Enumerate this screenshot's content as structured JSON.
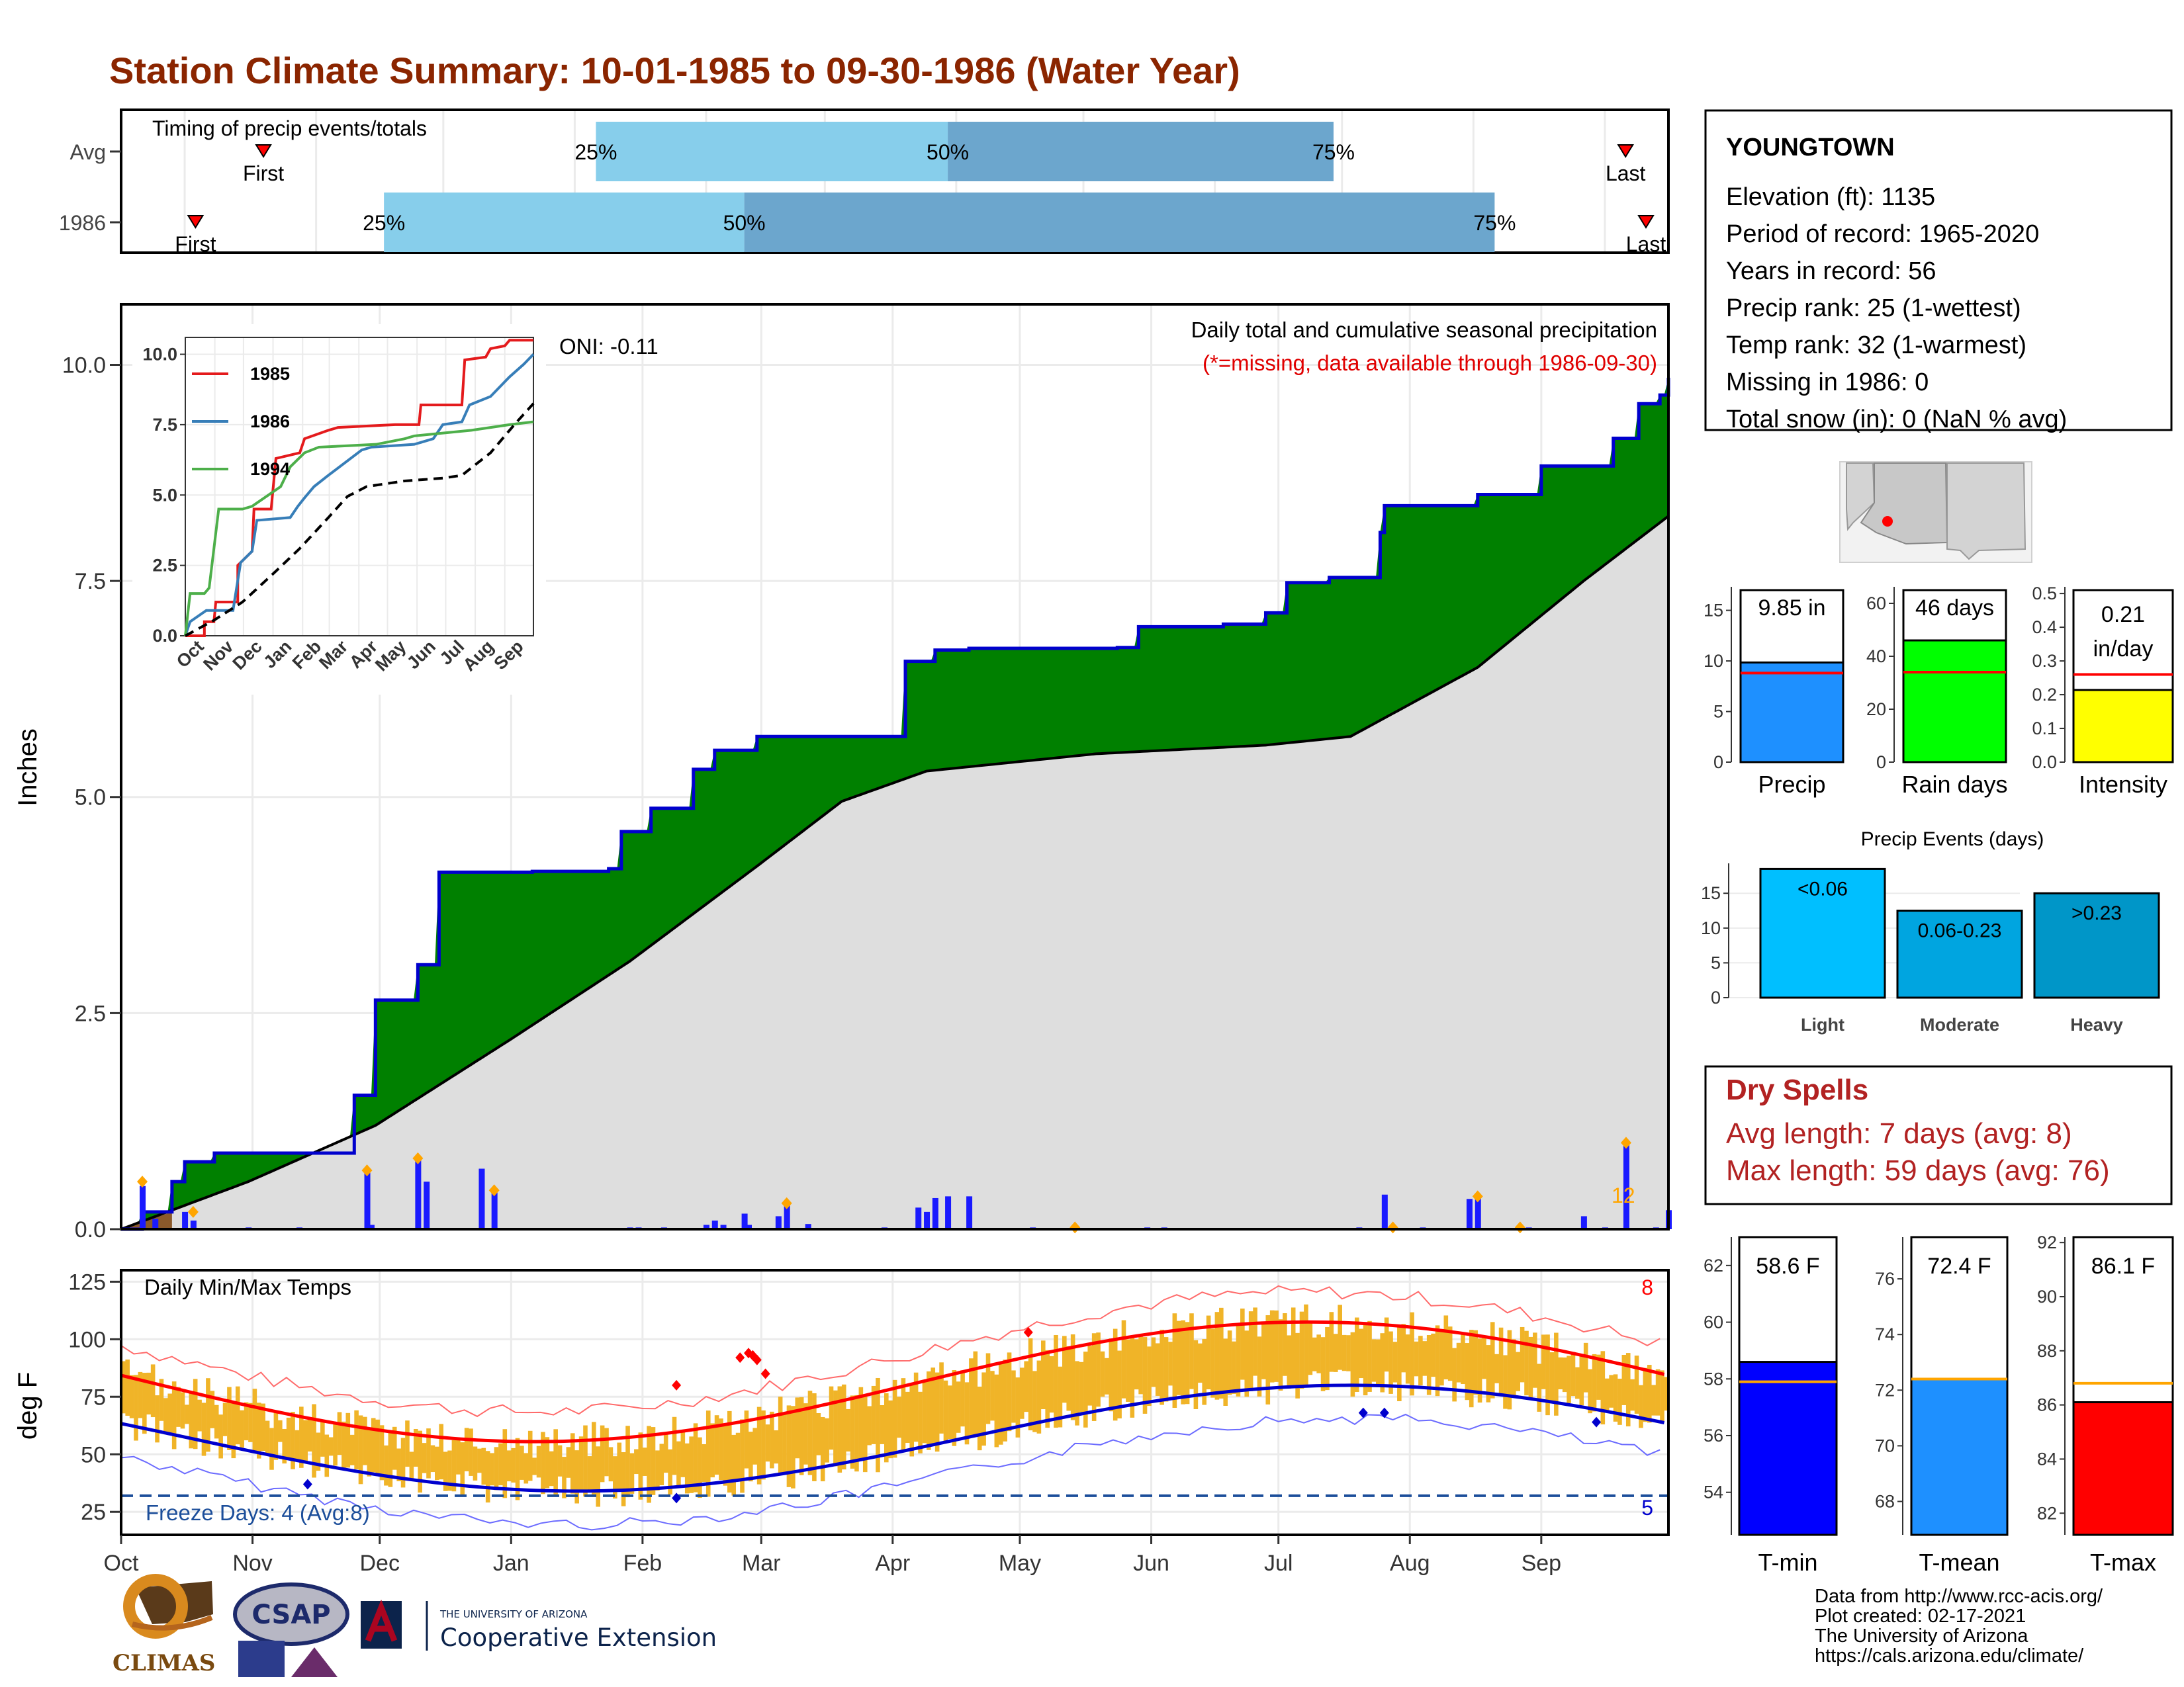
{
  "title": "Station Climate Summary: 10-01-1985 to 09-30-1986 (Water Year)",
  "timing": {
    "label": "Timing of precip events/totals",
    "rows": [
      {
        "name": "Avg",
        "first_label": "First",
        "last_label": "Last",
        "q25": "25%",
        "q50": "50%",
        "q75": "75%",
        "first_day": 23,
        "q25_day": 112,
        "q50_day": 195,
        "q75_day": 286,
        "last_day": 419
      },
      {
        "name": "1986",
        "first_label": "First",
        "last_label": "Last",
        "q25": "25%",
        "q50": "50%",
        "q75": "75%",
        "first_day": 10,
        "q25_day": 62,
        "q50_day": 147,
        "q75_day": 324,
        "last_day": 430
      }
    ]
  },
  "station": {
    "name": "YOUNGTOWN",
    "lines": [
      "Elevation (ft): 1135",
      "Period of record: 1965-2020",
      "Years in record: 56",
      "Precip rank: 25 (1-wettest)",
      "Temp rank: 32 (1-warmest)",
      "Missing in 1986: 0",
      "Total snow (in): 0 (NaN % avg)"
    ]
  },
  "precip_panel": {
    "ylabel": "Inches",
    "yticks": [
      "0.0",
      "2.5",
      "5.0",
      "7.5",
      "10.0"
    ],
    "note1": "Daily total and cumulative seasonal precipitation",
    "note2": "(*=missing, data available through 1986-09-30)",
    "oni": "ONI: -0.11",
    "count_label": "12",
    "colors": {
      "above": "#008000",
      "below": "#dedede",
      "line": "#0000cd",
      "bars": "#1a1aff",
      "marker": "#ffa500"
    }
  },
  "inset": {
    "yticks": [
      "0.0",
      "2.5",
      "5.0",
      "7.5",
      "10.0"
    ],
    "xticks": [
      "Oct",
      "Nov",
      "Dec",
      "Jan",
      "Feb",
      "Mar",
      "Apr",
      "May",
      "Jun",
      "Jul",
      "Aug",
      "Sep"
    ],
    "legend": [
      {
        "name": "1985",
        "color": "#e41a1c"
      },
      {
        "name": "1986",
        "color": "#377eb8"
      },
      {
        "name": "1994",
        "color": "#4daf4a"
      }
    ]
  },
  "temp_panel": {
    "ylabel": "deg F",
    "title": "Daily Min/Max Temps",
    "yticks": [
      "25",
      "50",
      "75",
      "100",
      "125"
    ],
    "freeze": "Freeze Days: 4 (Avg:8)",
    "top_count": "8",
    "bottom_count": "5"
  },
  "months": [
    "Oct",
    "Nov",
    "Dec",
    "Jan",
    "Feb",
    "Mar",
    "Apr",
    "May",
    "Jun",
    "Jul",
    "Aug",
    "Sep"
  ],
  "summary_bars": [
    {
      "label": "Precip",
      "value_text": "9.85 in",
      "value": 9.85,
      "avg": 8.8,
      "ymax": 17,
      "ticks": [
        "0",
        "5",
        "10",
        "15"
      ],
      "color": "#1e90ff"
    },
    {
      "label": "Rain days",
      "value_text": "46 days",
      "value": 46,
      "avg": 34,
      "ymax": 65,
      "ticks": [
        "0",
        "20",
        "40",
        "60"
      ],
      "color": "#00ff00"
    },
    {
      "label": "Intensity",
      "value_text": "0.21 in/day",
      "value_line1": "0.21",
      "value_line2": "in/day",
      "value": 0.214,
      "avg": 0.26,
      "ymax": 0.51,
      "ticks": [
        "0.0",
        "0.1",
        "0.2",
        "0.3",
        "0.4",
        "0.5"
      ],
      "color": "#ffff00"
    }
  ],
  "events": {
    "title": "Precip Events (days)",
    "yticks": [
      "0",
      "5",
      "10",
      "15"
    ],
    "bars": [
      {
        "label": "Light",
        "range": "<0.06",
        "value": 18.5,
        "color": "#00bfff"
      },
      {
        "label": "Moderate",
        "range": "0.06-0.23",
        "value": 12.5,
        "color": "#00a5e0"
      },
      {
        "label": "Heavy",
        "range": ">0.23",
        "value": 15,
        "color": "#0096c8"
      }
    ]
  },
  "dry_spells": {
    "title": "Dry Spells",
    "avg": "Avg length: 7 days (avg: 8)",
    "max": "Max length: 59 days (avg: 76)"
  },
  "temp_bars": [
    {
      "label": "T-min",
      "value_text": "58.6 F",
      "value": 58.6,
      "avg": 57.9,
      "ymin": 52.5,
      "ymax": 63,
      "ticks": [
        "54",
        "56",
        "58",
        "60",
        "62"
      ],
      "color": "#0000ff"
    },
    {
      "label": "T-mean",
      "value_text": "72.4 F",
      "value": 72.4,
      "avg": 72.4,
      "ymin": 66.8,
      "ymax": 77.5,
      "ticks": [
        "68",
        "70",
        "72",
        "74",
        "76"
      ],
      "color": "#1e90ff"
    },
    {
      "label": "T-max",
      "value_text": "86.1 F",
      "value": 86.1,
      "avg": 86.8,
      "ymin": 81.2,
      "ymax": 92.2,
      "ticks": [
        "82",
        "84",
        "86",
        "88",
        "90",
        "92"
      ],
      "color": "#ff0000"
    }
  ],
  "footer": [
    "Data from http://www.rcc-acis.org/",
    "Plot created: 02-17-2021",
    "The University of Arizona",
    "https://cals.arizona.edu/climate/"
  ],
  "logos": {
    "climas": "CLIMAS",
    "csap": "CSAP",
    "ua_small": "THE UNIVERSITY OF ARIZONA",
    "ua_big": "Cooperative Extension"
  },
  "chart_data": {
    "type": "area",
    "title": "Daily total and cumulative seasonal precipitation",
    "xlabel": "",
    "ylabel": "Inches",
    "ylim": [
      0,
      10.7
    ],
    "series": [
      {
        "name": "",
        "x": [
          0,
          5,
          12,
          15,
          22,
          30,
          45,
          55,
          60,
          70,
          75,
          87,
          88,
          97,
          115,
          118,
          125,
          135,
          140,
          141,
          150,
          185,
          192,
          200,
          210,
          235,
          240,
          260,
          270,
          275,
          285,
          297,
          298,
          320,
          335,
          352,
          358,
          363,
          365
        ],
        "y": [
          0,
          0.2,
          0.55,
          0.78,
          0.88,
          0.88,
          0.88,
          1.55,
          2.65,
          3.06,
          4.13,
          4.13,
          4.13,
          4.14,
          4.17,
          4.6,
          4.87,
          5.32,
          5.54,
          5.54,
          5.7,
          6.57,
          6.7,
          6.72,
          6.72,
          6.73,
          6.97,
          7.0,
          7.13,
          7.48,
          7.54,
          8.06,
          8.37,
          8.5,
          8.83,
          9.15,
          9.55,
          9.65,
          9.85
        ]
      }
    ]
  }
}
